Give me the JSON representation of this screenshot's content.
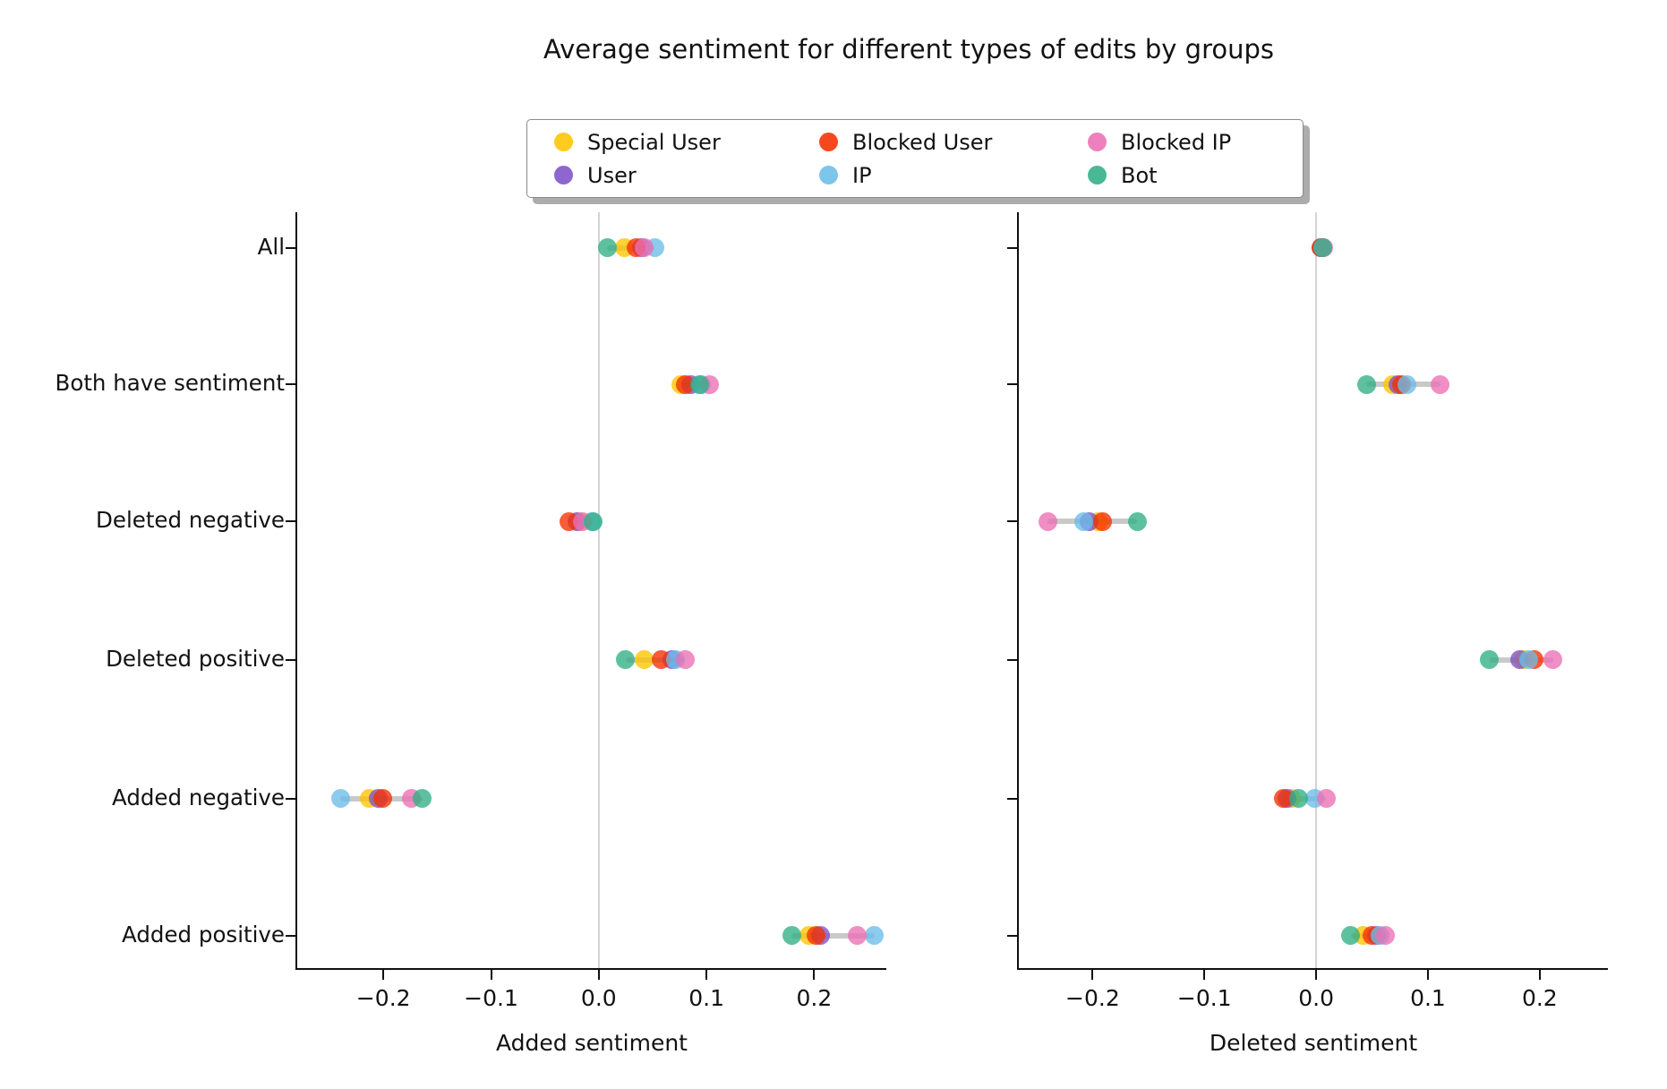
{
  "title": "Average sentiment for different types of edits by groups",
  "legend": {
    "entries": [
      {
        "label": "Special User",
        "color": "#FFC400"
      },
      {
        "label": "User",
        "color": "#7D52C8"
      },
      {
        "label": "Blocked User",
        "color": "#F52F00"
      },
      {
        "label": "IP",
        "color": "#6BBDE8"
      },
      {
        "label": "Blocked IP",
        "color": "#EC6FB4"
      },
      {
        "label": "Bot",
        "color": "#2FAF85"
      }
    ]
  },
  "style": {
    "spine_color": "#101010",
    "zero_line_color": "#d4d4d4",
    "connector_color": "#c9c9c9",
    "background": "#ffffff"
  },
  "chart_data": {
    "type": "scatter",
    "title": "Average sentiment for different types of edits by groups",
    "categories": [
      "All",
      "Both have sentiment",
      "Deleted negative",
      "Deleted positive",
      "Added negative",
      "Added positive"
    ],
    "legend_position": "top-center",
    "grid": false,
    "zero_reference_line": true,
    "groups": [
      "Special User",
      "User",
      "Blocked User",
      "IP",
      "Blocked IP",
      "Bot"
    ],
    "group_colors": [
      "#FFC400",
      "#7D52C8",
      "#F52F00",
      "#6BBDE8",
      "#EC6FB4",
      "#2FAF85"
    ],
    "panels": [
      {
        "xlabel": "Added sentiment",
        "xlim": [
          -0.28,
          0.267
        ],
        "xtick_values": [
          -0.2,
          -0.1,
          0.0,
          0.1,
          0.2
        ],
        "xtick_labels": [
          "−0.2",
          "−0.1",
          "0.0",
          "0.1",
          "0.2"
        ],
        "series": [
          {
            "name": "Special User",
            "values": [
              0.024,
              0.076,
              -0.018,
              0.042,
              -0.213,
              0.195
            ]
          },
          {
            "name": "User",
            "values": [
              0.04,
              0.085,
              -0.02,
              0.068,
              -0.205,
              0.206
            ]
          },
          {
            "name": "Blocked User",
            "values": [
              0.035,
              0.08,
              -0.028,
              0.058,
              -0.201,
              0.202
            ]
          },
          {
            "name": "IP",
            "values": [
              0.052,
              0.095,
              -0.006,
              0.071,
              -0.24,
              0.256
            ]
          },
          {
            "name": "Blocked IP",
            "values": [
              0.042,
              0.103,
              -0.015,
              0.08,
              -0.174,
              0.24
            ]
          },
          {
            "name": "Bot",
            "values": [
              0.008,
              0.094,
              -0.005,
              0.025,
              -0.164,
              0.179
            ]
          }
        ]
      },
      {
        "xlabel": "Deleted sentiment",
        "xlim": [
          -0.266,
          0.261
        ],
        "xtick_values": [
          -0.2,
          -0.1,
          0.0,
          0.1,
          0.2
        ],
        "xtick_labels": [
          "−0.2",
          "−0.1",
          "0.0",
          "0.1",
          "0.2"
        ],
        "series": [
          {
            "name": "Special User",
            "values": [
              0.005,
              0.068,
              -0.195,
              0.185,
              -0.022,
              0.042
            ]
          },
          {
            "name": "User",
            "values": [
              0.004,
              0.073,
              -0.203,
              0.182,
              -0.026,
              0.054
            ]
          },
          {
            "name": "Blocked User",
            "values": [
              0.004,
              0.076,
              -0.191,
              0.195,
              -0.029,
              0.05
            ]
          },
          {
            "name": "IP",
            "values": [
              0.006,
              0.081,
              -0.208,
              0.19,
              -0.001,
              0.057
            ]
          },
          {
            "name": "Blocked IP",
            "values": [
              0.007,
              0.111,
              -0.24,
              0.212,
              0.009,
              0.062
            ]
          },
          {
            "name": "Bot",
            "values": [
              0.006,
              0.045,
              -0.16,
              0.155,
              -0.016,
              0.031
            ]
          }
        ]
      }
    ]
  }
}
